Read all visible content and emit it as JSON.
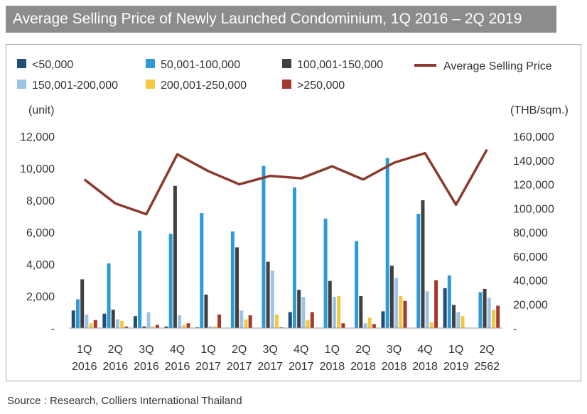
{
  "header": {
    "title": "Average Selling Price of Newly Launched Condominium, 1Q 2016 – 2Q 2019"
  },
  "footer": {
    "source": "Source : Research, Colliers International Thailand"
  },
  "chart_data": {
    "type": "bar",
    "title": "Average Selling Price of Newly Launched Condominium, 1Q 2016 – 2Q 2019",
    "ylabel": "(unit)",
    "y2label": "(THB/sqm.)",
    "ylim": [
      0,
      12000
    ],
    "y2lim": [
      0,
      160000
    ],
    "yticks": [
      "-",
      "2,000",
      "4,000",
      "6,000",
      "8,000",
      "10,000",
      "12,000"
    ],
    "y2ticks": [
      "-",
      "20,000",
      "40,000",
      "60,000",
      "80,000",
      "100,000",
      "120,000",
      "140,000",
      "160,000"
    ],
    "grid": false,
    "legend_position": "top",
    "categories": [
      [
        "1Q",
        "2016"
      ],
      [
        "2Q",
        "2016"
      ],
      [
        "3Q",
        "2016"
      ],
      [
        "4Q",
        "2016"
      ],
      [
        "1Q",
        "2017"
      ],
      [
        "2Q",
        "2017"
      ],
      [
        "3Q",
        "2017"
      ],
      [
        "4Q",
        "2017"
      ],
      [
        "1Q",
        "2018"
      ],
      [
        "2Q",
        "2018"
      ],
      [
        "3Q",
        "2018"
      ],
      [
        "4Q",
        "2018"
      ],
      [
        "1Q",
        "2019"
      ],
      [
        "2Q",
        "2562"
      ]
    ],
    "series": [
      {
        "name": "<50,000",
        "color": "#1f4e79",
        "values": [
          1100,
          900,
          750,
          100,
          50,
          0,
          0,
          1000,
          0,
          0,
          1050,
          0,
          2500,
          0
        ]
      },
      {
        "name": "50,001-100,000",
        "color": "#2e9ad6",
        "values": [
          1800,
          4050,
          6100,
          5900,
          7200,
          6050,
          10150,
          8800,
          6850,
          5450,
          10650,
          7150,
          3300,
          2250
        ]
      },
      {
        "name": "100,001-150,000",
        "color": "#404040",
        "values": [
          3050,
          1150,
          100,
          8900,
          2100,
          5050,
          4150,
          2400,
          2950,
          2000,
          3900,
          8000,
          1450,
          2450
        ]
      },
      {
        "name": "150,001-200,000",
        "color": "#9dc3e6",
        "values": [
          850,
          550,
          1000,
          800,
          100,
          1100,
          3600,
          1950,
          1950,
          300,
          3150,
          2300,
          1000,
          1900
        ]
      },
      {
        "name": "200,001-250,000",
        "color": "#f5c842",
        "values": [
          300,
          450,
          100,
          200,
          100,
          550,
          850,
          500,
          2000,
          650,
          2000,
          350,
          750,
          1150
        ]
      },
      {
        "name": ">250,000",
        "color": "#a33a2c",
        "values": [
          500,
          100,
          200,
          300,
          850,
          800,
          50,
          1000,
          300,
          250,
          1700,
          3000,
          0,
          1400
        ]
      }
    ],
    "line": {
      "name": "Average Selling Price",
      "color": "#8b3a2e",
      "values": [
        124000,
        104000,
        95000,
        145000,
        131000,
        120000,
        127000,
        125000,
        135000,
        124000,
        138000,
        146000,
        103000,
        149000
      ]
    }
  }
}
